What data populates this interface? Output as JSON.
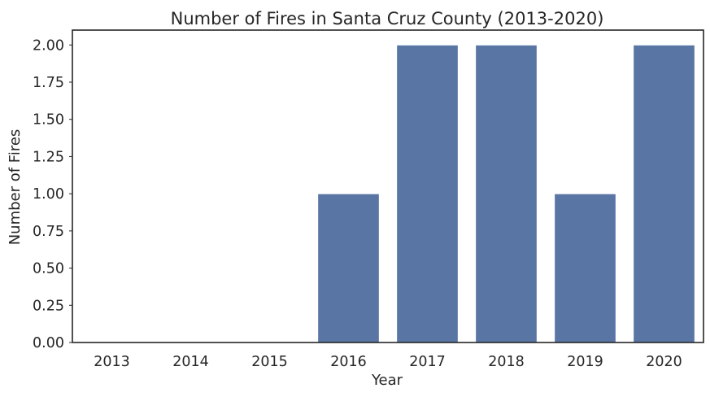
{
  "chart_data": {
    "type": "bar",
    "title": "Number of Fires in Santa Cruz County (2013-2020)",
    "xlabel": "Year",
    "ylabel": "Number of Fires",
    "categories": [
      "2013",
      "2014",
      "2015",
      "2016",
      "2017",
      "2018",
      "2019",
      "2020"
    ],
    "values": [
      0,
      0,
      0,
      1,
      2,
      2,
      1,
      2
    ],
    "ylim": [
      0,
      2.1
    ],
    "yticks": [
      "0.00",
      "0.25",
      "0.50",
      "0.75",
      "1.00",
      "1.25",
      "1.50",
      "1.75",
      "2.00"
    ],
    "grid": false,
    "legend": false,
    "colors": {
      "bar": "#5975a4",
      "bar_edge": "#ffffff",
      "axis": "#262626",
      "background": "#ffffff"
    }
  }
}
